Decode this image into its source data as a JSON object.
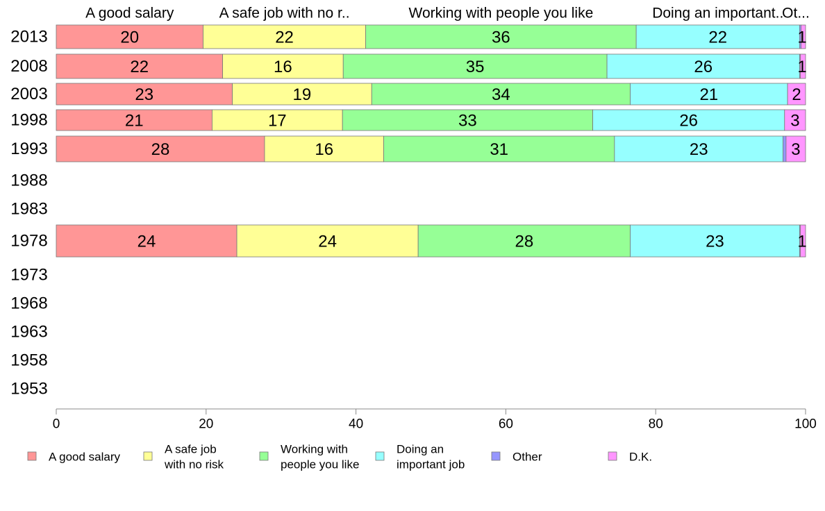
{
  "chart_data": {
    "type": "bar",
    "orientation": "horizontal",
    "stacked": true,
    "xlim": [
      0,
      100
    ],
    "x_ticks": [
      "0",
      "20",
      "40",
      "60",
      "80",
      "100"
    ],
    "categories": [
      "2013",
      "2008",
      "2003",
      "1998",
      "1993",
      "1988",
      "1983",
      "1978",
      "1973",
      "1968",
      "1963",
      "1958",
      "1953"
    ],
    "top_labels": [
      "A good salary",
      "A safe job with no r..",
      "Working with people you like",
      "Doing an important..",
      "Ot..."
    ],
    "series": [
      {
        "name": "A good salary",
        "legend": [
          "A good salary"
        ],
        "color": "#ff9696",
        "values": [
          19.6,
          22.2,
          23.5,
          20.8,
          27.8,
          null,
          null,
          24.1,
          null,
          null,
          null,
          null,
          null
        ],
        "labels": [
          "20",
          "22",
          "23",
          "21",
          "28",
          null,
          null,
          "24",
          null,
          null,
          null,
          null,
          null
        ]
      },
      {
        "name": "A safe job with no risk",
        "legend": [
          "A safe job",
          "with no risk"
        ],
        "color": "#ffff96",
        "values": [
          21.7,
          16.1,
          18.6,
          17.4,
          15.9,
          null,
          null,
          24.2,
          null,
          null,
          null,
          null,
          null
        ],
        "labels": [
          "22",
          "16",
          "19",
          "17",
          "16",
          null,
          null,
          "24",
          null,
          null,
          null,
          null,
          null
        ]
      },
      {
        "name": "Working with people you like",
        "legend": [
          "Working with",
          "people you like"
        ],
        "color": "#96ff96",
        "values": [
          36.1,
          35.2,
          34.5,
          33.4,
          30.8,
          null,
          null,
          28.3,
          null,
          null,
          null,
          null,
          null
        ],
        "labels": [
          "36",
          "35",
          "34",
          "33",
          "31",
          null,
          null,
          "28",
          null,
          null,
          null,
          null,
          null
        ]
      },
      {
        "name": "Doing an important job",
        "legend": [
          "Doing an",
          "important job"
        ],
        "color": "#96ffff",
        "values": [
          21.8,
          25.7,
          21.0,
          25.6,
          22.5,
          null,
          null,
          22.6,
          null,
          null,
          null,
          null,
          null
        ],
        "labels": [
          "22",
          "26",
          "21",
          "26",
          "23",
          null,
          null,
          "23",
          null,
          null,
          null,
          null,
          null
        ]
      },
      {
        "name": "Other",
        "legend": [
          "Other"
        ],
        "color": "#9696ff",
        "values": [
          0.2,
          0.1,
          0.0,
          0.0,
          0.4,
          null,
          null,
          0.1,
          null,
          null,
          null,
          null,
          null
        ],
        "labels": [
          null,
          null,
          null,
          null,
          null,
          null,
          null,
          null,
          null,
          null,
          null,
          null,
          null
        ]
      },
      {
        "name": "D.K.",
        "legend": [
          "D.K."
        ],
        "color": "#ff96ff",
        "values": [
          0.6,
          0.7,
          2.4,
          2.8,
          2.6,
          null,
          null,
          0.7,
          null,
          null,
          null,
          null,
          null
        ],
        "labels": [
          "1",
          "1",
          "2",
          "3",
          "3",
          null,
          null,
          "1",
          null,
          null,
          null,
          null,
          null
        ]
      }
    ]
  }
}
